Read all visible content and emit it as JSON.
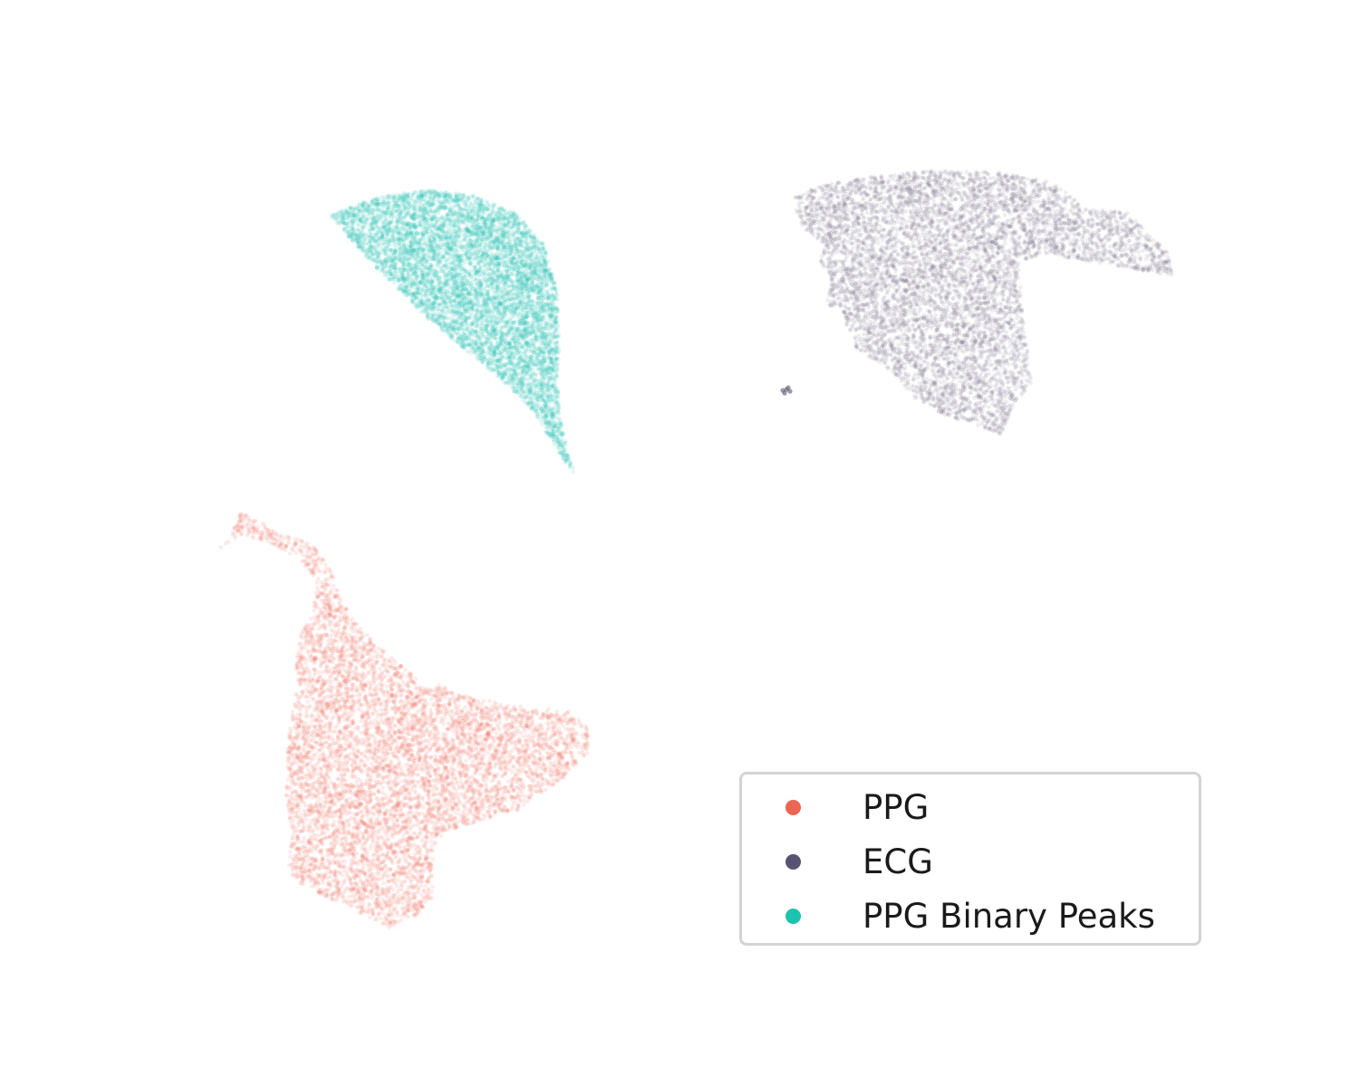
{
  "chart_data": {
    "type": "scatter",
    "title": "",
    "xlabel": "",
    "ylabel": "",
    "axes_visible": false,
    "grid": false,
    "legend": {
      "position": "lower-right",
      "entries": [
        "PPG",
        "ECG",
        "PPG Binary Peaks"
      ]
    },
    "series": [
      {
        "name": "PPG",
        "color": "#ec6653",
        "opacity": 0.12,
        "outline": [
          [
            265,
            565
          ],
          [
            285,
            575
          ],
          [
            310,
            590
          ],
          [
            345,
            600
          ],
          [
            365,
            630
          ],
          [
            375,
            660
          ],
          [
            395,
            690
          ],
          [
            420,
            715
          ],
          [
            450,
            740
          ],
          [
            470,
            760
          ],
          [
            485,
            755
          ],
          [
            500,
            765
          ],
          [
            560,
            778
          ],
          [
            630,
            785
          ],
          [
            648,
            800
          ],
          [
            650,
            830
          ],
          [
            620,
            860
          ],
          [
            570,
            895
          ],
          [
            520,
            910
          ],
          [
            490,
            920
          ],
          [
            478,
            940
          ],
          [
            478,
            990
          ],
          [
            460,
            1010
          ],
          [
            430,
            1025
          ],
          [
            400,
            1010
          ],
          [
            370,
            995
          ],
          [
            330,
            975
          ],
          [
            318,
            960
          ],
          [
            322,
            920
          ],
          [
            315,
            880
          ],
          [
            318,
            820
          ],
          [
            325,
            760
          ],
          [
            330,
            700
          ],
          [
            345,
            680
          ],
          [
            350,
            640
          ],
          [
            330,
            618
          ],
          [
            300,
            600
          ],
          [
            265,
            590
          ],
          [
            240,
            608
          ],
          [
            255,
            588
          ],
          [
            262,
            575
          ]
        ]
      },
      {
        "name": "ECG",
        "color": "#585370",
        "opacity": 0.1,
        "outline": [
          [
            878,
            215
          ],
          [
            905,
            205
          ],
          [
            960,
            195
          ],
          [
            1030,
            188
          ],
          [
            1100,
            190
          ],
          [
            1160,
            200
          ],
          [
            1200,
            230
          ],
          [
            1245,
            235
          ],
          [
            1265,
            255
          ],
          [
            1290,
            280
          ],
          [
            1295,
            305
          ],
          [
            1270,
            300
          ],
          [
            1210,
            290
          ],
          [
            1150,
            280
          ],
          [
            1125,
            290
          ],
          [
            1130,
            360
          ],
          [
            1140,
            420
          ],
          [
            1118,
            448
          ],
          [
            1105,
            480
          ],
          [
            1080,
            470
          ],
          [
            1045,
            460
          ],
          [
            1010,
            440
          ],
          [
            985,
            410
          ],
          [
            960,
            395
          ],
          [
            940,
            380
          ],
          [
            930,
            345
          ],
          [
            912,
            335
          ],
          [
            918,
            310
          ],
          [
            905,
            290
          ],
          [
            910,
            270
          ],
          [
            885,
            250
          ],
          [
            878,
            230
          ]
        ],
        "satellite": [
          [
            864,
            431
          ],
          [
            868,
            430
          ],
          [
            872,
            432
          ],
          [
            866,
            434
          ],
          [
            870,
            428
          ]
        ]
      },
      {
        "name": "PPG Binary Peaks",
        "color": "#1fc2ae",
        "opacity": 0.13,
        "outline": [
          [
            365,
            238
          ],
          [
            395,
            225
          ],
          [
            430,
            215
          ],
          [
            475,
            210
          ],
          [
            520,
            215
          ],
          [
            570,
            235
          ],
          [
            600,
            270
          ],
          [
            615,
            320
          ],
          [
            618,
            370
          ],
          [
            615,
            420
          ],
          [
            618,
            460
          ],
          [
            625,
            490
          ],
          [
            632,
            515
          ],
          [
            638,
            530
          ],
          [
            630,
            520
          ],
          [
            610,
            490
          ],
          [
            590,
            455
          ],
          [
            560,
            425
          ],
          [
            530,
            400
          ],
          [
            500,
            375
          ],
          [
            470,
            350
          ],
          [
            440,
            320
          ],
          [
            410,
            290
          ],
          [
            385,
            262
          ]
        ]
      }
    ]
  }
}
